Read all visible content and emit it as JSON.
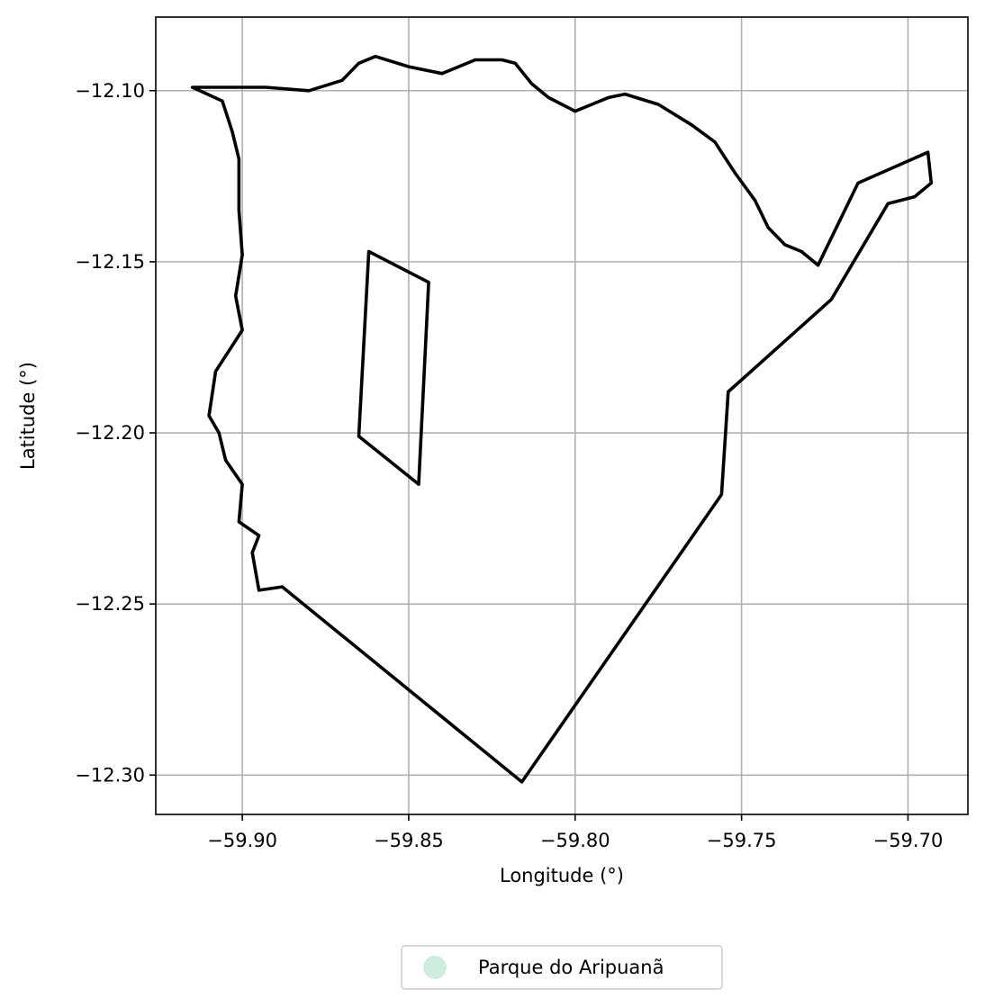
{
  "chart_data": {
    "type": "map",
    "xlabel": "Longitude (°)",
    "ylabel": "Latitude (°)",
    "xlim": [
      -59.926,
      -59.682
    ],
    "ylim": [
      -12.3115,
      -12.0785
    ],
    "xticks": [
      -59.9,
      -59.85,
      -59.8,
      -59.75,
      -59.7
    ],
    "yticks": [
      -12.1,
      -12.15,
      -12.2,
      -12.25,
      -12.3
    ],
    "xtick_labels": [
      "−59.90",
      "−59.85",
      "−59.80",
      "−59.75",
      "−59.70"
    ],
    "ytick_labels": [
      "−12.10",
      "−12.15",
      "−12.20",
      "−12.25",
      "−12.30"
    ],
    "grid": true,
    "legend": {
      "placement": "below-center",
      "entries": [
        {
          "label": "Parque do Aripuanã",
          "color": "#cdeedf"
        }
      ]
    },
    "boundary_color": "#000000",
    "outer_boundary": [
      [
        -59.915,
        -12.099
      ],
      [
        -59.893,
        -12.099
      ],
      [
        -59.88,
        -12.1
      ],
      [
        -59.87,
        -12.097
      ],
      [
        -59.865,
        -12.092
      ],
      [
        -59.86,
        -12.09
      ],
      [
        -59.85,
        -12.093
      ],
      [
        -59.84,
        -12.095
      ],
      [
        -59.83,
        -12.091
      ],
      [
        -59.822,
        -12.091
      ],
      [
        -59.818,
        -12.092
      ],
      [
        -59.813,
        -12.098
      ],
      [
        -59.808,
        -12.102
      ],
      [
        -59.8,
        -12.106
      ],
      [
        -59.795,
        -12.104
      ],
      [
        -59.79,
        -12.102
      ],
      [
        -59.785,
        -12.101
      ],
      [
        -59.775,
        -12.104
      ],
      [
        -59.765,
        -12.11
      ],
      [
        -59.758,
        -12.115
      ],
      [
        -59.752,
        -12.124
      ],
      [
        -59.746,
        -12.132
      ],
      [
        -59.742,
        -12.14
      ],
      [
        -59.737,
        -12.145
      ],
      [
        -59.732,
        -12.147
      ],
      [
        -59.727,
        -12.151
      ],
      [
        -59.715,
        -12.127
      ],
      [
        -59.694,
        -12.118
      ],
      [
        -59.693,
        -12.127
      ],
      [
        -59.698,
        -12.131
      ],
      [
        -59.706,
        -12.133
      ],
      [
        -59.723,
        -12.161
      ],
      [
        -59.754,
        -12.188
      ],
      [
        -59.756,
        -12.218
      ],
      [
        -59.816,
        -12.302
      ],
      [
        -59.888,
        -12.245
      ],
      [
        -59.895,
        -12.246
      ],
      [
        -59.897,
        -12.235
      ],
      [
        -59.895,
        -12.23
      ],
      [
        -59.901,
        -12.226
      ],
      [
        -59.9,
        -12.215
      ],
      [
        -59.905,
        -12.208
      ],
      [
        -59.907,
        -12.2
      ],
      [
        -59.91,
        -12.195
      ],
      [
        -59.908,
        -12.182
      ],
      [
        -59.904,
        -12.176
      ],
      [
        -59.9,
        -12.17
      ],
      [
        -59.902,
        -12.16
      ],
      [
        -59.9,
        -12.148
      ],
      [
        -59.901,
        -12.135
      ],
      [
        -59.901,
        -12.12
      ],
      [
        -59.903,
        -12.112
      ],
      [
        -59.906,
        -12.103
      ],
      [
        -59.915,
        -12.099
      ]
    ],
    "inner_boundary": [
      [
        -59.862,
        -12.147
      ],
      [
        -59.844,
        -12.156
      ],
      [
        -59.847,
        -12.215
      ],
      [
        -59.865,
        -12.201
      ],
      [
        -59.862,
        -12.147
      ]
    ]
  }
}
